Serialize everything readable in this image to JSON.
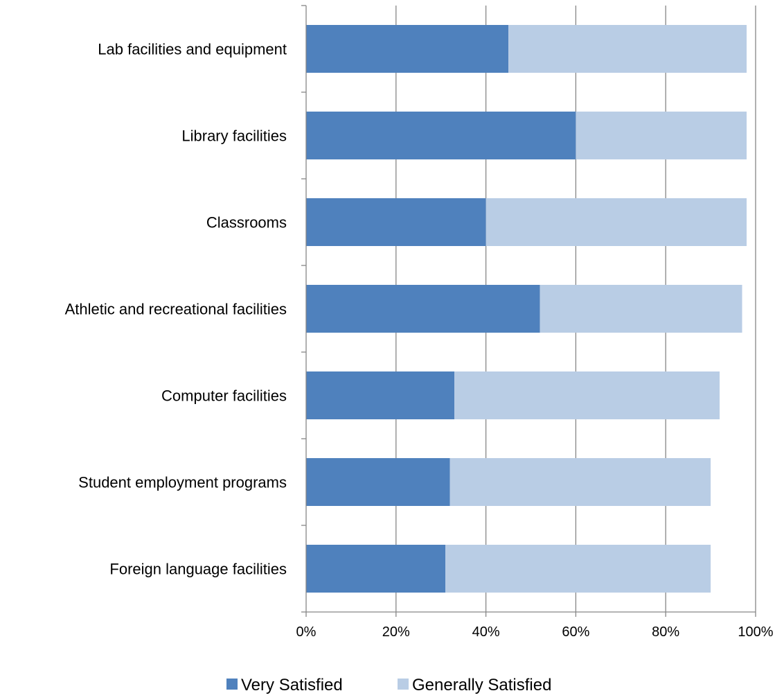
{
  "chart_data": {
    "type": "bar",
    "orientation": "horizontal",
    "stacked": true,
    "categories": [
      "Lab facilities and equipment",
      "Library facilities",
      "Classrooms",
      "Athletic and recreational facilities",
      "Computer facilities",
      "Student employment programs",
      "Foreign language facilities"
    ],
    "series": [
      {
        "name": "Very Satisfied",
        "color": "#4F81BD",
        "values": [
          45,
          60,
          40,
          52,
          33,
          32,
          31
        ]
      },
      {
        "name": "Generally Satisfied",
        "color": "#B9CDE5",
        "values": [
          53,
          38,
          58,
          45,
          59,
          58,
          59
        ]
      }
    ],
    "xlim": [
      0,
      100
    ],
    "x_ticks": [
      "0%",
      "20%",
      "40%",
      "60%",
      "80%",
      "100%"
    ],
    "grid": true,
    "legend_position": "bottom"
  }
}
